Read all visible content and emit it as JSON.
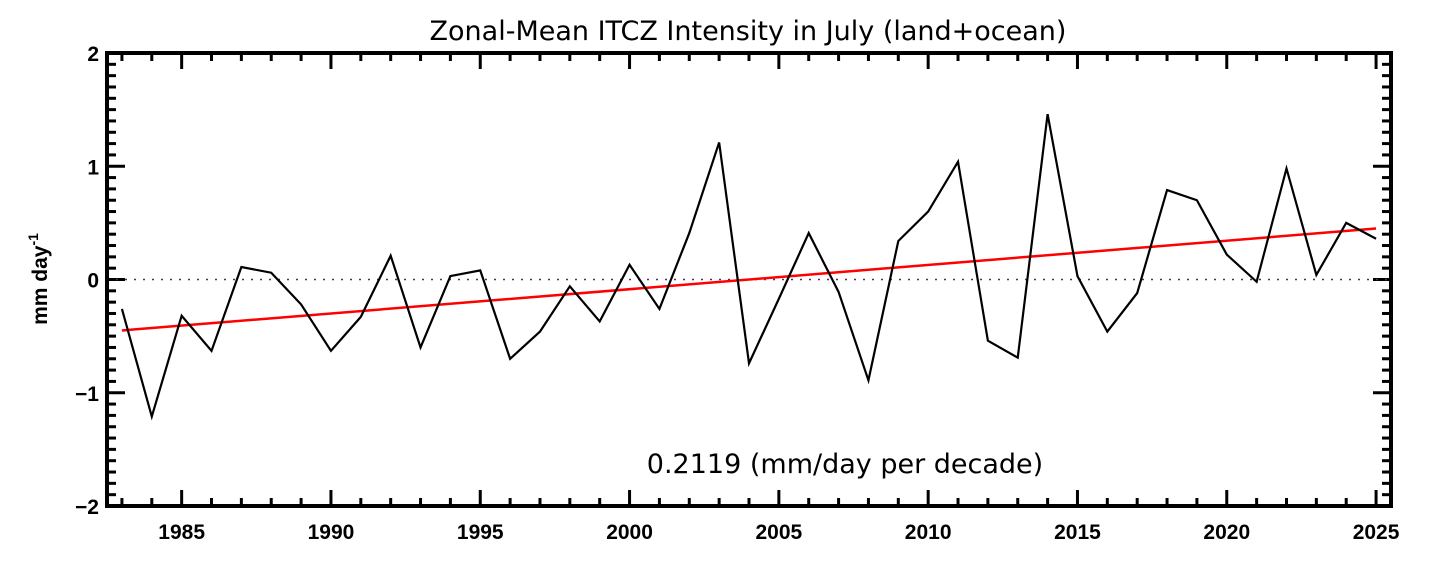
{
  "chart_data": {
    "type": "line",
    "title": "Zonal-Mean ITCZ Intensity in July (land+ocean)",
    "xlabel": "",
    "ylabel": "mm day",
    "ylabel_superscript": "-1",
    "annotation": "0.2119 (mm/day per decade)",
    "xlim": [
      1982.5,
      2025.5
    ],
    "ylim": [
      -2,
      2
    ],
    "x_ticks": [
      1985,
      1990,
      1995,
      2000,
      2005,
      2010,
      2015,
      2020,
      2025
    ],
    "y_ticks": [
      -2,
      -1,
      0,
      1,
      2
    ],
    "y_tick_labels": [
      "−2",
      "−1",
      "0",
      "1",
      "2"
    ],
    "grid": false,
    "zero_line": {
      "value": 0,
      "style": "dotted",
      "color": "#5a2a5a"
    },
    "series": [
      {
        "color": "#000000",
        "x": [
          1983,
          1984,
          1985,
          1986,
          1987,
          1988,
          1989,
          1990,
          1991,
          1992,
          1993,
          1994,
          1995,
          1996,
          1997,
          1998,
          1999,
          2000,
          2001,
          2002,
          2003,
          2004,
          2005,
          2006,
          2007,
          2008,
          2009,
          2010,
          2011,
          2012,
          2013,
          2014,
          2015,
          2016,
          2017,
          2018,
          2019,
          2020,
          2021,
          2022,
          2023,
          2024,
          2025
        ],
        "values": [
          -0.26,
          -1.21,
          -0.32,
          -0.63,
          0.11,
          0.06,
          -0.22,
          -0.63,
          -0.33,
          0.21,
          -0.6,
          0.03,
          0.08,
          -0.7,
          -0.46,
          -0.06,
          -0.37,
          0.13,
          -0.26,
          0.41,
          1.21,
          -0.74,
          -0.17,
          0.41,
          -0.11,
          -0.89,
          0.34,
          0.6,
          1.04,
          -0.54,
          -0.69,
          1.46,
          0.03,
          -0.46,
          -0.12,
          0.79,
          0.7,
          0.22,
          -0.02,
          0.98,
          0.04,
          0.5,
          0.36
        ]
      }
    ],
    "trend_line": {
      "color": "#ff0000",
      "x": [
        1983,
        2025
      ],
      "values": [
        -0.45,
        0.45
      ]
    }
  }
}
